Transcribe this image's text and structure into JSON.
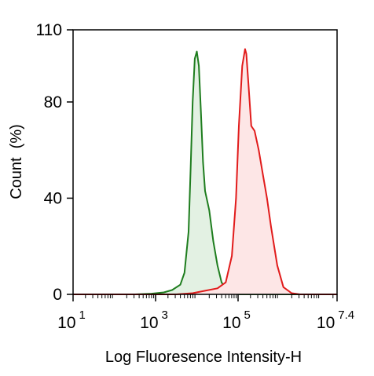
{
  "chart_data": {
    "type": "area",
    "title": "",
    "xlabel": "Log Fluoresence Intensity-H",
    "ylabel": "Count  (%)",
    "x_scale": "log",
    "xlim": [
      1,
      7.4
    ],
    "ylim": [
      0,
      110
    ],
    "x_ticks": [
      {
        "base": "10",
        "exp": "1"
      },
      {
        "base": "10",
        "exp": "3"
      },
      {
        "base": "10",
        "exp": "5"
      },
      {
        "base": "10",
        "exp": "7.4"
      }
    ],
    "y_ticks": [
      "0",
      "40",
      "80",
      "110"
    ],
    "grid": false,
    "legend": "none",
    "series": [
      {
        "color": "#1e7d1e",
        "fill": "#e3f1e3",
        "x": [
          1.0,
          2.5,
          2.9,
          3.2,
          3.4,
          3.6,
          3.7,
          3.8,
          3.85,
          3.9,
          3.95,
          4.0,
          4.05,
          4.1,
          4.15,
          4.2,
          4.3,
          4.4,
          4.5,
          4.6,
          4.75,
          5.0,
          7.4
        ],
        "y": [
          0,
          0,
          0.3,
          0.8,
          1.8,
          4,
          9,
          26,
          52,
          80,
          98,
          101,
          95,
          76,
          55,
          43,
          35,
          22,
          12,
          5,
          1,
          0,
          0
        ]
      },
      {
        "color": "#e11b1b",
        "fill": "#fde6e6",
        "x": [
          1.0,
          3.5,
          3.9,
          4.2,
          4.5,
          4.7,
          4.85,
          4.95,
          5.02,
          5.1,
          5.17,
          5.2,
          5.25,
          5.32,
          5.4,
          5.5,
          5.6,
          5.7,
          5.8,
          5.95,
          6.1,
          6.3,
          6.5,
          7.4
        ],
        "y": [
          0,
          0,
          0.5,
          1.5,
          2.5,
          5,
          16,
          40,
          70,
          95,
          102,
          100,
          88,
          70,
          68,
          60,
          50,
          40,
          28,
          12,
          3,
          0.5,
          0,
          0
        ]
      }
    ]
  }
}
